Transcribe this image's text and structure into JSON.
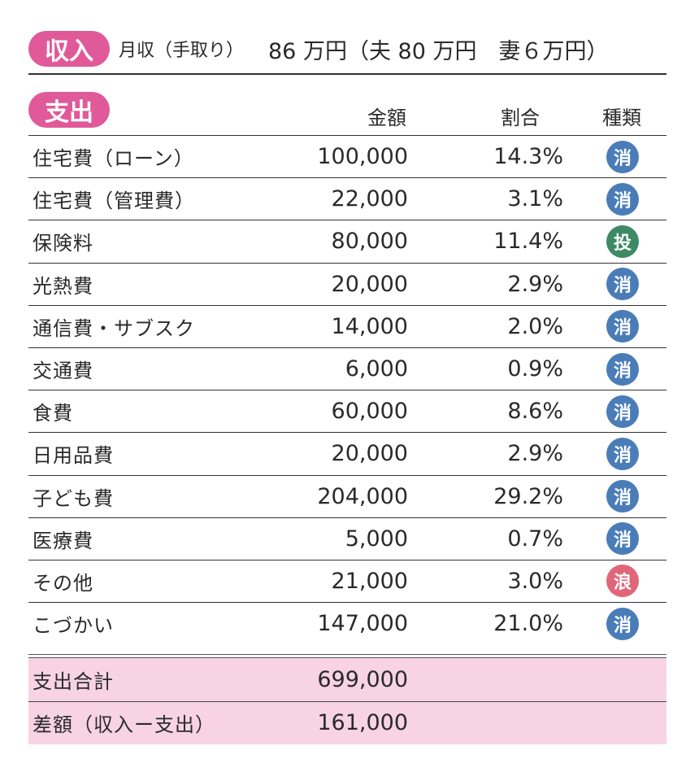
{
  "income": {
    "badge": "収入",
    "label": "月収（手取り）",
    "value": "86 万円（夫 80 万円　妻６万円）"
  },
  "expense": {
    "badge": "支出",
    "columns": {
      "amount": "金額",
      "ratio": "割合",
      "type": "種類"
    },
    "rows": [
      {
        "name": "住宅費（ローン）",
        "amount": "100,000",
        "ratio": "14.3%",
        "type": "消",
        "type_color": "#4a7db8"
      },
      {
        "name": "住宅費（管理費）",
        "amount": "22,000",
        "ratio": "3.1%",
        "type": "消",
        "type_color": "#4a7db8"
      },
      {
        "name": "保険料",
        "amount": "80,000",
        "ratio": "11.4%",
        "type": "投",
        "type_color": "#3d8a64"
      },
      {
        "name": "光熱費",
        "amount": "20,000",
        "ratio": "2.9%",
        "type": "消",
        "type_color": "#4a7db8"
      },
      {
        "name": "通信費・サブスク",
        "amount": "14,000",
        "ratio": "2.0%",
        "type": "消",
        "type_color": "#4a7db8"
      },
      {
        "name": "交通費",
        "amount": "6,000",
        "ratio": "0.9%",
        "type": "消",
        "type_color": "#4a7db8"
      },
      {
        "name": "食費",
        "amount": "60,000",
        "ratio": "8.6%",
        "type": "消",
        "type_color": "#4a7db8"
      },
      {
        "name": "日用品費",
        "amount": "20,000",
        "ratio": "2.9%",
        "type": "消",
        "type_color": "#4a7db8"
      },
      {
        "name": "子ども費",
        "amount": "204,000",
        "ratio": "29.2%",
        "type": "消",
        "type_color": "#4a7db8"
      },
      {
        "name": "医療費",
        "amount": "5,000",
        "ratio": "0.7%",
        "type": "消",
        "type_color": "#4a7db8"
      },
      {
        "name": "その他",
        "amount": "21,000",
        "ratio": "3.0%",
        "type": "浪",
        "type_color": "#e06678"
      },
      {
        "name": "こづかい",
        "amount": "147,000",
        "ratio": "21.0%",
        "type": "消",
        "type_color": "#4a7db8"
      }
    ],
    "total": {
      "label": "支出合計",
      "amount": "699,000"
    },
    "difference": {
      "label": "差額（収入ー支出）",
      "amount": "161,000"
    }
  },
  "colors": {
    "pill": "#e05a9a",
    "total_bg": "#f7d3e3"
  }
}
